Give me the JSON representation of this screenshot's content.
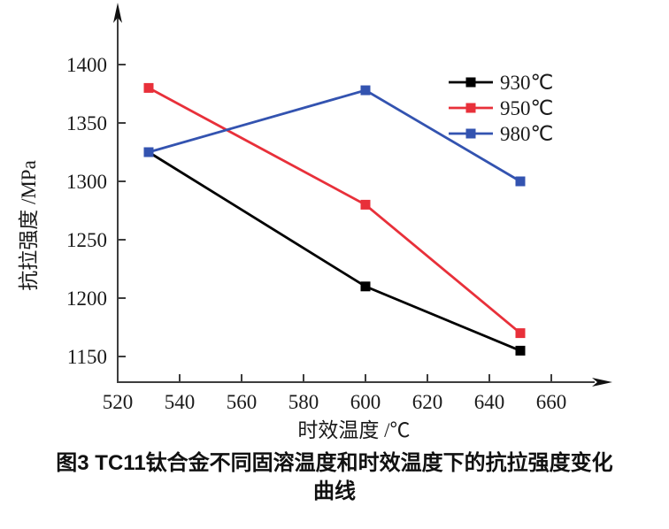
{
  "figure": {
    "caption_line1": "图3  TC11钛合金不同固溶温度和时效温度下的抗拉强度变化",
    "caption_line2": "曲线"
  },
  "chart_data": {
    "type": "line",
    "title": "",
    "xlabel": "时效温度 /℃",
    "ylabel": "抗拉强度 /MPa",
    "x": [
      530,
      600,
      650
    ],
    "series": [
      {
        "name": "930℃",
        "color": "#000000",
        "values": [
          1325,
          1210,
          1155
        ]
      },
      {
        "name": "950℃",
        "color": "#e8303a",
        "values": [
          1380,
          1280,
          1170
        ]
      },
      {
        "name": "980℃",
        "color": "#3353b0",
        "values": [
          1325,
          1378,
          1300
        ]
      }
    ],
    "x_ticks": [
      520,
      540,
      560,
      580,
      600,
      620,
      640,
      660
    ],
    "y_ticks": [
      1150,
      1200,
      1250,
      1300,
      1350,
      1400
    ],
    "xlim": [
      520,
      678
    ],
    "ylim": [
      1128,
      1449
    ],
    "grid": false,
    "marker": "square",
    "legend_position": "top-right",
    "axis_color": "#3d3d3d",
    "text_color": "#1a1a1a"
  }
}
